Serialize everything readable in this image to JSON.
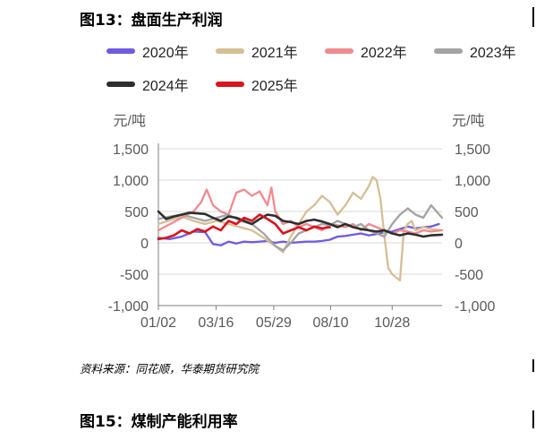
{
  "figure_title": "图13：盘面生产利润",
  "next_figure_title": "图15：煤制产能利用率",
  "source_note": "资料来源：同花顺，华泰期货研究院",
  "chart_data": {
    "type": "line",
    "ylabel_left": "元/吨",
    "ylabel_right": "元/吨",
    "ylim": [
      -1000,
      1500
    ],
    "yticks": [
      1500,
      1000,
      500,
      0,
      -500,
      -1000
    ],
    "ytick_labels_left": [
      "1,500",
      "1,000",
      "500",
      "0",
      "-500",
      "-1,000"
    ],
    "ytick_labels_right": [
      "1,500",
      "1,000",
      "500",
      "0",
      "-500",
      "-1,000"
    ],
    "x_ticks": [
      "01/02",
      "03/16",
      "05/29",
      "08/10",
      "10/28"
    ],
    "x_tick_days": [
      0,
      74,
      148,
      221,
      300
    ],
    "x_range_days": [
      0,
      364
    ],
    "grid": "horizontal",
    "legend_position": "top",
    "series": [
      {
        "name": "2020年",
        "color": "#6f5ae0",
        "x": [
          0,
          15,
          30,
          45,
          60,
          70,
          80,
          90,
          100,
          110,
          120,
          130,
          140,
          150,
          160,
          170,
          180,
          190,
          200,
          210,
          220,
          230,
          240,
          250,
          260,
          270,
          280,
          290,
          300,
          310,
          320,
          330,
          340,
          350,
          360
        ],
        "y": [
          80,
          60,
          100,
          180,
          170,
          -20,
          -40,
          20,
          -10,
          20,
          10,
          20,
          30,
          0,
          20,
          0,
          10,
          20,
          20,
          30,
          50,
          100,
          110,
          130,
          150,
          120,
          140,
          170,
          180,
          220,
          260,
          230,
          250,
          260,
          300
        ]
      },
      {
        "name": "2021年",
        "color": "#d5bf95",
        "x": [
          0,
          15,
          30,
          45,
          60,
          75,
          90,
          105,
          120,
          135,
          150,
          160,
          170,
          180,
          190,
          200,
          210,
          220,
          230,
          240,
          250,
          260,
          270,
          275,
          280,
          285,
          290,
          295,
          300,
          305,
          310,
          315,
          320,
          325,
          330,
          340,
          350,
          364
        ],
        "y": [
          300,
          360,
          420,
          350,
          300,
          350,
          300,
          250,
          200,
          80,
          -50,
          -150,
          100,
          300,
          500,
          600,
          750,
          650,
          450,
          600,
          800,
          700,
          900,
          1050,
          1000,
          700,
          100,
          -400,
          -500,
          -550,
          -600,
          200,
          300,
          350,
          200,
          250,
          220,
          200
        ]
      },
      {
        "name": "2022年",
        "color": "#f08a8f",
        "x": [
          0,
          15,
          30,
          45,
          55,
          62,
          70,
          80,
          90,
          100,
          110,
          120,
          130,
          140,
          145,
          150,
          160,
          170,
          180,
          190,
          200,
          210,
          220,
          230,
          240,
          250,
          260,
          270,
          280,
          290,
          300,
          310,
          320,
          330,
          340,
          350,
          364
        ],
        "y": [
          200,
          300,
          400,
          500,
          650,
          850,
          600,
          500,
          450,
          800,
          850,
          750,
          820,
          600,
          880,
          500,
          300,
          350,
          250,
          300,
          250,
          200,
          300,
          280,
          250,
          300,
          200,
          300,
          250,
          200,
          150,
          200,
          180,
          150,
          200,
          180,
          200
        ]
      },
      {
        "name": "2023年",
        "color": "#a3a3a3",
        "x": [
          0,
          15,
          30,
          45,
          60,
          75,
          90,
          105,
          120,
          135,
          150,
          160,
          170,
          180,
          190,
          200,
          210,
          220,
          230,
          240,
          250,
          260,
          270,
          280,
          290,
          300,
          310,
          320,
          330,
          340,
          350,
          364
        ],
        "y": [
          380,
          420,
          450,
          400,
          350,
          400,
          450,
          350,
          300,
          150,
          -50,
          -120,
          0,
          150,
          200,
          250,
          300,
          280,
          350,
          300,
          250,
          300,
          200,
          150,
          100,
          300,
          450,
          550,
          450,
          400,
          600,
          400
        ]
      },
      {
        "name": "2024年",
        "color": "#2e2e2e",
        "x": [
          0,
          10,
          20,
          30,
          40,
          50,
          60,
          70,
          80,
          90,
          100,
          110,
          120,
          130,
          140,
          150,
          160,
          170,
          180,
          190,
          200,
          210,
          220,
          230,
          240,
          250,
          260,
          270,
          280,
          290,
          300,
          310,
          320,
          330,
          340,
          350,
          364
        ],
        "y": [
          500,
          380,
          420,
          450,
          480,
          470,
          460,
          400,
          350,
          420,
          400,
          350,
          300,
          380,
          450,
          430,
          350,
          330,
          300,
          350,
          370,
          340,
          300,
          250,
          300,
          250,
          220,
          200,
          180,
          200,
          150,
          120,
          150,
          130,
          100,
          120,
          130
        ]
      },
      {
        "name": "2025年",
        "color": "#d9141c",
        "x": [
          0,
          10,
          20,
          30,
          40,
          50,
          60,
          70,
          80,
          90,
          100,
          110,
          120,
          130,
          140,
          150,
          160,
          170,
          180,
          190,
          200,
          210,
          220
        ],
        "y": [
          60,
          80,
          120,
          200,
          150,
          220,
          180,
          260,
          200,
          350,
          300,
          400,
          350,
          450,
          380,
          300,
          150,
          200,
          250,
          200,
          260,
          230,
          250
        ]
      }
    ]
  }
}
